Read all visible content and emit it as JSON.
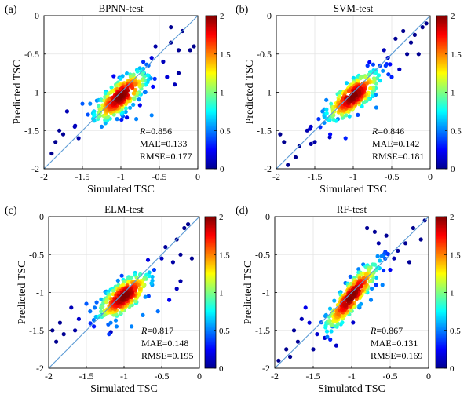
{
  "figure": {
    "colorbar_ticks": [
      "0",
      "0.5",
      "1",
      "1.5",
      "2"
    ],
    "colorbar_range": [
      0,
      2
    ],
    "colorscale": [
      "#00008f",
      "#0000ff",
      "#00ffff",
      "#ffff00",
      "#ff0000",
      "#800000"
    ]
  },
  "chart_data": [
    {
      "type": "scatter",
      "panel_label": "(a)",
      "title": "BPNN-test",
      "xlabel": "Simulated TSC",
      "ylabel": "Predicted TSC",
      "xlim": [
        -2,
        0
      ],
      "ylim": [
        -2,
        0
      ],
      "xticks": [
        "-2",
        "-1.5",
        "-1",
        "-0.5",
        "0"
      ],
      "yticks": [
        "-2",
        "-1.5",
        "-1",
        "-0.5",
        "0"
      ],
      "reference_line": "1:1",
      "metrics": {
        "r_symbol": "R",
        "r_value": "=0.856",
        "mae": "MAE=0.133",
        "rmse": "RMSE=0.177"
      },
      "cluster": {
        "center_x": -1.0,
        "center_y": -1.05,
        "slope": 0.72
      },
      "outliers": [
        [
          -1.9,
          -1.8
        ],
        [
          -1.85,
          -1.65
        ],
        [
          -1.75,
          -1.55
        ],
        [
          -1.8,
          -1.5
        ],
        [
          -1.6,
          -1.45
        ],
        [
          -1.55,
          -1.6
        ],
        [
          -1.7,
          -1.25
        ],
        [
          -1.4,
          -1.15
        ],
        [
          -1.35,
          -1.25
        ],
        [
          -1.25,
          -1.45
        ],
        [
          -1.25,
          -1.1
        ],
        [
          -1.05,
          -1.35
        ],
        [
          -0.8,
          -1.35
        ],
        [
          -0.6,
          -1.3
        ],
        [
          -0.4,
          -0.8
        ],
        [
          -0.3,
          -0.9
        ],
        [
          -0.45,
          -0.6
        ],
        [
          -0.55,
          -0.4
        ],
        [
          -0.35,
          -0.35
        ],
        [
          -0.25,
          -0.45
        ],
        [
          -0.2,
          -0.2
        ],
        [
          -0.1,
          -0.45
        ],
        [
          -0.05,
          -0.4
        ],
        [
          -0.35,
          -0.15
        ],
        [
          -0.6,
          -0.55
        ],
        [
          -0.7,
          -0.75
        ],
        [
          -0.25,
          -0.75
        ],
        [
          -1.5,
          -1.15
        ]
      ]
    },
    {
      "type": "scatter",
      "panel_label": "(b)",
      "title": "SVM-test",
      "xlabel": "Simulated TSC",
      "ylabel": "Predicted TSC",
      "xlim": [
        -2,
        0
      ],
      "ylim": [
        -2,
        0
      ],
      "xticks": [
        "-2",
        "-1.5",
        "-1",
        "-0.5",
        "0"
      ],
      "yticks": [
        "-2",
        "-1.5",
        "-1",
        "-0.5",
        "0"
      ],
      "reference_line": "1:1",
      "metrics": {
        "r_symbol": "R",
        "r_value": "=0.846",
        "mae": "MAE=0.142",
        "rmse": "RMSE=0.181"
      },
      "cluster": {
        "center_x": -1.0,
        "center_y": -1.05,
        "slope": 0.68
      },
      "outliers": [
        [
          -1.95,
          -1.55
        ],
        [
          -1.9,
          -1.65
        ],
        [
          -1.7,
          -1.7
        ],
        [
          -1.6,
          -1.5
        ],
        [
          -1.5,
          -1.65
        ],
        [
          -1.55,
          -1.45
        ],
        [
          -1.45,
          -1.35
        ],
        [
          -1.75,
          -1.85
        ],
        [
          -1.4,
          -1.25
        ],
        [
          -1.3,
          -1.55
        ],
        [
          -1.2,
          -1.35
        ],
        [
          -1.1,
          -1.6
        ],
        [
          -0.7,
          -1.2
        ],
        [
          -0.5,
          -0.8
        ],
        [
          -0.4,
          -0.7
        ],
        [
          -0.3,
          -0.5
        ],
        [
          -0.2,
          -0.25
        ],
        [
          -0.1,
          -0.15
        ],
        [
          -0.35,
          -0.2
        ],
        [
          -0.25,
          -0.35
        ],
        [
          -0.45,
          -0.3
        ],
        [
          -0.55,
          -0.55
        ],
        [
          -0.6,
          -0.45
        ],
        [
          -0.05,
          -0.1
        ],
        [
          -0.15,
          -0.5
        ],
        [
          -0.65,
          -0.65
        ],
        [
          -1.85,
          -1.95
        ],
        [
          -1.35,
          -1.1
        ]
      ]
    },
    {
      "type": "scatter",
      "panel_label": "(c)",
      "title": "ELM-test",
      "xlabel": "Simulated TSC",
      "ylabel": "Predicted TSC",
      "xlim": [
        -2,
        0
      ],
      "ylim": [
        -2,
        0
      ],
      "xticks": [
        "-2",
        "-1.5",
        "-1",
        "-0.5",
        "0"
      ],
      "yticks": [
        "-2",
        "-1.5",
        "-1",
        "-0.5",
        "0"
      ],
      "reference_line": "1:1",
      "metrics": {
        "r_symbol": "R",
        "r_value": "=0.817",
        "mae": "MAE=0.148",
        "rmse": "RMSE=0.195"
      },
      "cluster": {
        "center_x": -1.0,
        "center_y": -1.05,
        "slope": 0.62
      },
      "outliers": [
        [
          -1.95,
          -1.5
        ],
        [
          -1.9,
          -1.65
        ],
        [
          -1.8,
          -1.55
        ],
        [
          -1.85,
          -1.4
        ],
        [
          -1.65,
          -1.5
        ],
        [
          -1.6,
          -1.35
        ],
        [
          -1.7,
          -1.2
        ],
        [
          -1.4,
          -1.45
        ],
        [
          -1.3,
          -1.3
        ],
        [
          -1.2,
          -1.55
        ],
        [
          -1.1,
          -1.45
        ],
        [
          -0.9,
          -1.45
        ],
        [
          -0.75,
          -1.3
        ],
        [
          -0.55,
          -1.25
        ],
        [
          -0.4,
          -1.1
        ],
        [
          -0.3,
          -0.95
        ],
        [
          -0.25,
          -0.85
        ],
        [
          -0.2,
          -0.15
        ],
        [
          -0.15,
          -0.1
        ],
        [
          -0.3,
          -0.3
        ],
        [
          -0.5,
          -0.55
        ],
        [
          -0.35,
          -0.6
        ],
        [
          -0.45,
          -0.4
        ],
        [
          -0.6,
          -0.7
        ],
        [
          -0.25,
          -0.5
        ],
        [
          -0.1,
          -0.55
        ],
        [
          -1.5,
          -1.15
        ],
        [
          -1.45,
          -1.25
        ]
      ]
    },
    {
      "type": "scatter",
      "panel_label": "(d)",
      "title": "RF-test",
      "xlabel": "Simulated TSC",
      "ylabel": "Predicted TSC",
      "xlim": [
        -2,
        0
      ],
      "ylim": [
        -2,
        0
      ],
      "xticks": [
        "-2",
        "-1.5",
        "-1",
        "-0.5",
        "0"
      ],
      "yticks": [
        "-2",
        "-1.5",
        "-1",
        "-0.5",
        "0"
      ],
      "reference_line": "1:1",
      "metrics": {
        "r_symbol": "R",
        "r_value": "=0.867",
        "mae": "MAE=0.131",
        "rmse": "RMSE=0.169"
      },
      "cluster": {
        "center_x": -1.0,
        "center_y": -1.05,
        "slope": 1.15
      },
      "outliers": [
        [
          -1.95,
          -1.9
        ],
        [
          -1.85,
          -1.75
        ],
        [
          -1.8,
          -1.85
        ],
        [
          -1.7,
          -1.65
        ],
        [
          -1.75,
          -1.5
        ],
        [
          -1.65,
          -1.35
        ],
        [
          -1.55,
          -1.4
        ],
        [
          -1.5,
          -1.75
        ],
        [
          -1.45,
          -1.55
        ],
        [
          -1.35,
          -1.6
        ],
        [
          -1.25,
          -1.45
        ],
        [
          -1.2,
          -1.7
        ],
        [
          -0.9,
          -1.2
        ],
        [
          -0.75,
          -1.1
        ],
        [
          -0.6,
          -0.9
        ],
        [
          -0.5,
          -0.7
        ],
        [
          -0.4,
          -0.45
        ],
        [
          -0.3,
          -0.35
        ],
        [
          -0.2,
          -0.15
        ],
        [
          -0.1,
          -0.3
        ],
        [
          -0.55,
          -0.25
        ],
        [
          -0.65,
          -0.35
        ],
        [
          -0.7,
          -0.2
        ],
        [
          -0.8,
          -0.15
        ],
        [
          -0.45,
          -0.55
        ],
        [
          -0.25,
          -0.6
        ],
        [
          -0.05,
          -0.05
        ],
        [
          -1.6,
          -1.2
        ]
      ]
    }
  ]
}
